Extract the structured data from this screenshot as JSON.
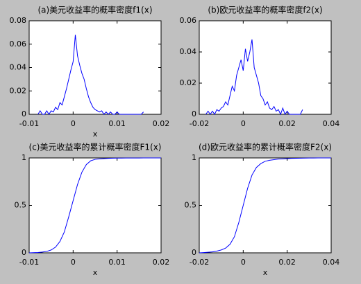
{
  "chart_data": [
    {
      "type": "line",
      "title": "(a)美元收益率的概率密度f1(x)",
      "xlabel": "x",
      "xlim": [
        -0.01,
        0.02
      ],
      "xticks": [
        -0.01,
        0,
        0.01,
        0.02
      ],
      "ylim": [
        0,
        0.08
      ],
      "yticks": [
        0,
        0.02,
        0.04,
        0.06,
        0.08
      ],
      "series": [
        {
          "color": "#0000ff",
          "x": [
            -0.008,
            -0.0075,
            -0.007,
            -0.0065,
            -0.006,
            -0.0055,
            -0.005,
            -0.0045,
            -0.004,
            -0.0035,
            -0.003,
            -0.0025,
            -0.002,
            -0.0015,
            -0.001,
            -0.0005,
            0,
            0.0005,
            0.001,
            0.0015,
            0.002,
            0.0025,
            0.003,
            0.0035,
            0.004,
            0.0045,
            0.005,
            0.0055,
            0.006,
            0.0065,
            0.007,
            0.0075,
            0.008,
            0.0085,
            0.009,
            0.0095,
            0.01,
            0.0105,
            0.011,
            0.0115,
            0.012,
            0.0125,
            0.013,
            0.0135,
            0.014,
            0.0145,
            0.015,
            0.0155,
            0.016
          ],
          "values": [
            0,
            0.003,
            0,
            0,
            0.003,
            0,
            0.003,
            0.002,
            0.006,
            0.004,
            0.01,
            0.008,
            0.015,
            0.022,
            0.03,
            0.038,
            0.045,
            0.068,
            0.05,
            0.042,
            0.035,
            0.03,
            0.022,
            0.015,
            0.01,
            0.006,
            0.004,
            0.003,
            0.002,
            0.003,
            0,
            0.002,
            0,
            0.002,
            0,
            0,
            0.002,
            0,
            0,
            0,
            0,
            0,
            0,
            0,
            0,
            0,
            0,
            0,
            0.002
          ]
        }
      ]
    },
    {
      "type": "line",
      "title": "(b)欧元收益率的概率密度f2(x)",
      "xlim": [
        -0.02,
        0.04
      ],
      "xticks": [
        -0.02,
        0,
        0.02,
        0.04
      ],
      "ylim": [
        0,
        0.06
      ],
      "yticks": [
        0,
        0.02,
        0.04,
        0.06
      ],
      "series": [
        {
          "color": "#0000ff",
          "x": [
            -0.017,
            -0.016,
            -0.015,
            -0.014,
            -0.013,
            -0.012,
            -0.011,
            -0.01,
            -0.009,
            -0.008,
            -0.007,
            -0.006,
            -0.005,
            -0.004,
            -0.003,
            -0.002,
            -0.001,
            0,
            0.001,
            0.002,
            0.003,
            0.004,
            0.005,
            0.006,
            0.007,
            0.008,
            0.009,
            0.01,
            0.011,
            0.012,
            0.013,
            0.014,
            0.015,
            0.016,
            0.017,
            0.018,
            0.019,
            0.02,
            0.021,
            0.022,
            0.023,
            0.024,
            0.025,
            0.026,
            0.027
          ],
          "values": [
            0,
            0.002,
            0,
            0.002,
            0,
            0.003,
            0.002,
            0.004,
            0.005,
            0.008,
            0.006,
            0.012,
            0.018,
            0.015,
            0.025,
            0.03,
            0.035,
            0.028,
            0.042,
            0.034,
            0.04,
            0.048,
            0.03,
            0.025,
            0.02,
            0.012,
            0.01,
            0.006,
            0.008,
            0.004,
            0.003,
            0.005,
            0.002,
            0.003,
            0,
            0.004,
            0,
            0.002,
            0,
            0,
            0,
            0,
            0,
            0,
            0.003
          ]
        }
      ]
    },
    {
      "type": "line",
      "title": "(c)美元收益率的累计概率密度F1(x)",
      "xlabel": "x",
      "xlim": [
        -0.01,
        0.02
      ],
      "xticks": [
        -0.01,
        0,
        0.01,
        0.02
      ],
      "ylim": [
        0,
        1
      ],
      "yticks": [
        0,
        0.5,
        1
      ],
      "series": [
        {
          "color": "#0000ff",
          "x": [
            -0.01,
            -0.009,
            -0.008,
            -0.007,
            -0.006,
            -0.005,
            -0.004,
            -0.003,
            -0.002,
            -0.001,
            0,
            0.001,
            0.002,
            0.003,
            0.004,
            0.005,
            0.006,
            0.007,
            0.008,
            0.009,
            0.01,
            0.011,
            0.012,
            0.013,
            0.014,
            0.015,
            0.016,
            0.017,
            0.018,
            0.019,
            0.02
          ],
          "values": [
            0,
            0.002,
            0.004,
            0.008,
            0.015,
            0.03,
            0.06,
            0.12,
            0.22,
            0.38,
            0.55,
            0.72,
            0.85,
            0.93,
            0.97,
            0.985,
            0.99,
            0.993,
            0.995,
            0.997,
            0.998,
            0.998,
            0.999,
            0.999,
            0.999,
            0.999,
            1,
            1,
            1,
            1,
            1
          ]
        }
      ]
    },
    {
      "type": "line",
      "title": "(d)欧元收益率的累计概率密度F2(x)",
      "xlabel": "x",
      "xlim": [
        -0.02,
        0.04
      ],
      "xticks": [
        -0.02,
        0,
        0.02,
        0.04
      ],
      "ylim": [
        0,
        1
      ],
      "yticks": [
        0,
        0.5,
        1
      ],
      "series": [
        {
          "color": "#0000ff",
          "x": [
            -0.02,
            -0.018,
            -0.016,
            -0.014,
            -0.012,
            -0.01,
            -0.008,
            -0.006,
            -0.004,
            -0.002,
            0,
            0.002,
            0.004,
            0.006,
            0.008,
            0.01,
            0.012,
            0.014,
            0.016,
            0.018,
            0.02,
            0.022,
            0.024,
            0.026,
            0.028,
            0.03,
            0.032,
            0.034,
            0.036,
            0.038,
            0.04
          ],
          "values": [
            0,
            0.003,
            0.006,
            0.01,
            0.018,
            0.03,
            0.05,
            0.09,
            0.17,
            0.32,
            0.5,
            0.68,
            0.82,
            0.9,
            0.94,
            0.965,
            0.975,
            0.982,
            0.988,
            0.99,
            0.993,
            0.995,
            0.996,
            0.997,
            0.998,
            0.999,
            0.999,
            1,
            1,
            1,
            1
          ]
        }
      ]
    }
  ]
}
